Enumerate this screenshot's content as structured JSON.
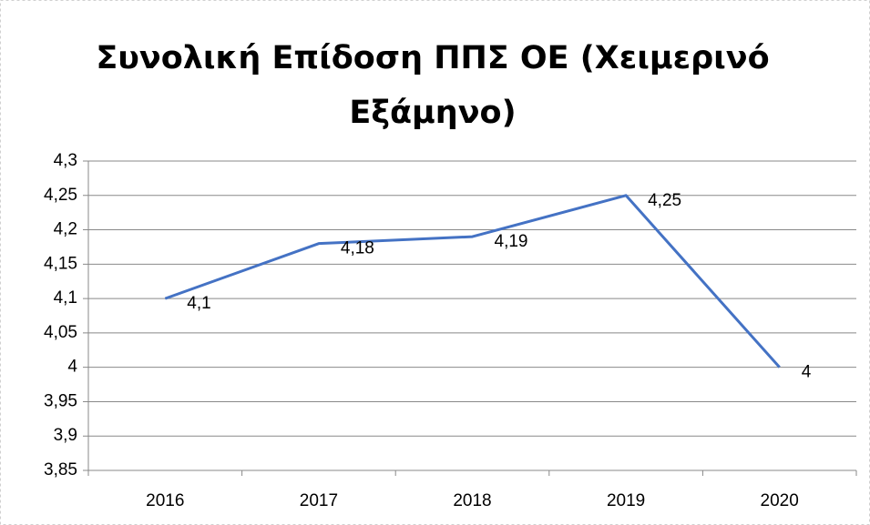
{
  "chart_data": {
    "type": "line",
    "title": "Συνολική Επίδοση ΠΠΣ ΟΕ (Χειμερινό Εξάμηνο)",
    "categories": [
      "2016",
      "2017",
      "2018",
      "2019",
      "2020"
    ],
    "series": [
      {
        "name": "Συνολική Επίδοση",
        "color": "#4472c4",
        "values": [
          4.1,
          4.18,
          4.19,
          4.25,
          4
        ],
        "value_labels": [
          "4,1",
          "4,18",
          "4,19",
          "4,25",
          "4"
        ]
      }
    ],
    "ylim": [
      3.85,
      4.3
    ],
    "yticks": [
      {
        "value": 3.85,
        "label": "3,85"
      },
      {
        "value": 3.9,
        "label": "3,9"
      },
      {
        "value": 3.95,
        "label": "3,95"
      },
      4,
      {
        "value": 4.05,
        "label": "4,05"
      },
      {
        "value": 4.1,
        "label": "4,1"
      },
      {
        "value": 4.15,
        "label": "4,15"
      },
      {
        "value": 4.2,
        "label": "4,2"
      },
      {
        "value": 4.25,
        "label": "4,25"
      },
      {
        "value": 4.3,
        "label": "4,3"
      }
    ],
    "grid": true
  }
}
